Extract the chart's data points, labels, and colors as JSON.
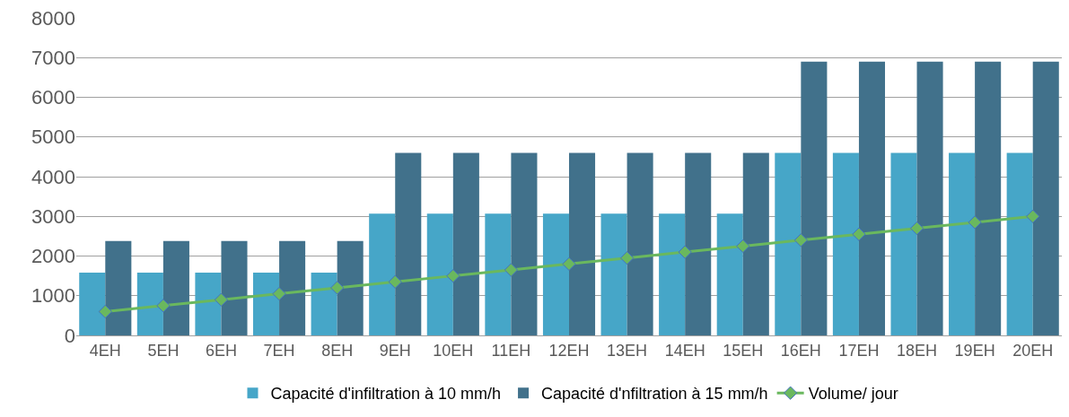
{
  "chart_data": {
    "type": "bar",
    "categories": [
      "4EH",
      "5EH",
      "6EH",
      "7EH",
      "8EH",
      "9EH",
      "10EH",
      "11EH",
      "12EH",
      "13EH",
      "14EH",
      "15EH",
      "16EH",
      "17EH",
      "18EH",
      "19EH",
      "20EH"
    ],
    "series": [
      {
        "name": "Capacité d'infiltration à 10 mm/h",
        "color": "#46a6c8",
        "values": [
          1580,
          1580,
          1580,
          1580,
          1580,
          3070,
          3070,
          3070,
          3070,
          3070,
          3070,
          3070,
          4600,
          4600,
          4600,
          4600,
          4600
        ]
      },
      {
        "name": "Capacité d'nfiltration à 15 mm/h",
        "color": "#41718b",
        "values": [
          2380,
          2380,
          2380,
          2380,
          2380,
          4600,
          4600,
          4600,
          4600,
          4600,
          4600,
          4600,
          6900,
          6900,
          6900,
          6900,
          6900
        ]
      },
      {
        "name": "Volume/ jour",
        "type": "line",
        "color": "#6ab85e",
        "marker": "diamond",
        "values": [
          600,
          750,
          900,
          1050,
          1200,
          1350,
          1500,
          1650,
          1800,
          1950,
          2100,
          2250,
          2400,
          2550,
          2700,
          2850,
          3000
        ]
      }
    ],
    "ylim": [
      0,
      8000
    ],
    "yticks": [
      0,
      1000,
      2000,
      3000,
      4000,
      5000,
      6000,
      7000,
      8000
    ],
    "grid": "y",
    "legend": "bottom"
  }
}
